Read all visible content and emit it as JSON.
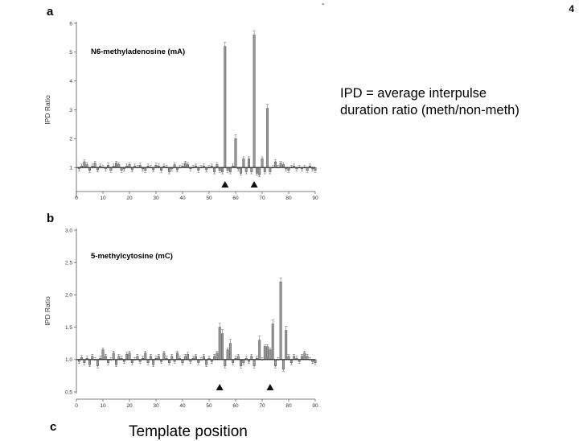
{
  "page": {
    "number": "4",
    "dash": "-"
  },
  "panels": {
    "a": "a",
    "b": "b",
    "c": "c"
  },
  "caption": {
    "line1": "IPD = average interpulse",
    "line2": "duration ratio (meth/non-meth)"
  },
  "cut_text": "Template position",
  "chart_data": [
    {
      "type": "bar",
      "title": "N6-methyladenosine (mA)",
      "ylabel": "IPD Ratio",
      "xlabel": "",
      "xlim": [
        0,
        90
      ],
      "ylim": [
        0,
        6
      ],
      "baseline": 1.0,
      "yticks": [
        1,
        2,
        3,
        4,
        5,
        6
      ],
      "xticks": [
        0,
        10,
        20,
        30,
        40,
        50,
        60,
        70,
        80,
        90
      ],
      "grid": false,
      "markers_x": [
        56,
        67
      ],
      "x": [
        1,
        2,
        3,
        4,
        5,
        6,
        7,
        8,
        9,
        10,
        11,
        12,
        13,
        14,
        15,
        16,
        17,
        18,
        19,
        20,
        21,
        22,
        23,
        24,
        25,
        26,
        27,
        28,
        29,
        30,
        31,
        32,
        33,
        34,
        35,
        36,
        37,
        38,
        39,
        40,
        41,
        42,
        43,
        44,
        45,
        46,
        47,
        48,
        49,
        50,
        51,
        52,
        53,
        54,
        55,
        56,
        57,
        58,
        59,
        60,
        61,
        62,
        63,
        64,
        65,
        66,
        67,
        68,
        69,
        70,
        71,
        72,
        73,
        74,
        75,
        76,
        77,
        78,
        79,
        80,
        81,
        82,
        83,
        84,
        85,
        86,
        87,
        88,
        89,
        90
      ],
      "values": [
        0.95,
        1.05,
        1.2,
        1.1,
        0.9,
        1.05,
        1.15,
        0.92,
        1.05,
        1.0,
        0.95,
        1.08,
        0.9,
        1.05,
        1.15,
        1.1,
        0.9,
        0.95,
        1.05,
        1.1,
        0.92,
        1.05,
        1.0,
        1.08,
        0.95,
        0.9,
        1.05,
        1.0,
        0.92,
        1.08,
        1.05,
        0.9,
        1.05,
        1.0,
        0.85,
        0.95,
        1.1,
        0.92,
        1.0,
        1.05,
        1.15,
        1.1,
        0.95,
        1.0,
        1.05,
        0.9,
        1.0,
        1.05,
        0.92,
        1.0,
        1.05,
        0.85,
        1.1,
        0.9,
        0.85,
        5.2,
        0.9,
        0.85,
        1.05,
        2.0,
        0.95,
        0.8,
        1.3,
        0.85,
        1.3,
        0.85,
        5.6,
        0.8,
        0.75,
        1.3,
        0.85,
        3.05,
        0.85,
        1.0,
        1.2,
        1.0,
        1.15,
        1.1,
        0.95,
        0.9,
        1.0,
        1.05,
        0.95,
        1.0,
        0.95,
        1.0,
        0.9,
        1.05,
        0.95,
        0.9
      ]
    },
    {
      "type": "bar",
      "title": "5-methylcytosine (mC)",
      "ylabel": "IPD Ratio",
      "xlabel": "",
      "xlim": [
        0,
        90
      ],
      "ylim": [
        0.5,
        3.0
      ],
      "baseline": 1.0,
      "yticks": [
        0.5,
        1.0,
        1.5,
        2.0,
        2.5,
        3.0
      ],
      "ytick_labels": [
        "0.5",
        "1.0",
        "1.5",
        "2.0",
        "2.5",
        "3.0"
      ],
      "xticks": [
        0,
        10,
        20,
        30,
        40,
        50,
        60,
        70,
        80,
        90
      ],
      "grid": false,
      "markers_x": [
        54,
        73
      ],
      "x": [
        1,
        2,
        3,
        4,
        5,
        6,
        7,
        8,
        9,
        10,
        11,
        12,
        13,
        14,
        15,
        16,
        17,
        18,
        19,
        20,
        21,
        22,
        23,
        24,
        25,
        26,
        27,
        28,
        29,
        30,
        31,
        32,
        33,
        34,
        35,
        36,
        37,
        38,
        39,
        40,
        41,
        42,
        43,
        44,
        45,
        46,
        47,
        48,
        49,
        50,
        51,
        52,
        53,
        54,
        55,
        56,
        57,
        58,
        59,
        60,
        61,
        62,
        63,
        64,
        65,
        66,
        67,
        68,
        69,
        70,
        71,
        72,
        73,
        74,
        75,
        76,
        77,
        78,
        79,
        80,
        81,
        82,
        83,
        84,
        85,
        86,
        87,
        88,
        89,
        90
      ],
      "values": [
        0.97,
        1.03,
        0.95,
        1.02,
        0.92,
        1.05,
        1.0,
        0.9,
        1.02,
        1.15,
        1.05,
        0.95,
        1.0,
        1.1,
        0.92,
        1.05,
        1.02,
        0.97,
        1.08,
        1.1,
        0.95,
        1.0,
        1.05,
        0.97,
        1.02,
        1.1,
        0.95,
        1.05,
        0.92,
        1.02,
        1.05,
        0.97,
        1.1,
        1.02,
        0.95,
        1.05,
        0.97,
        1.1,
        1.02,
        0.95,
        1.05,
        1.08,
        0.97,
        1.02,
        1.05,
        0.95,
        1.0,
        1.05,
        0.92,
        1.02,
        0.97,
        1.05,
        1.1,
        1.5,
        1.4,
        0.9,
        1.15,
        1.25,
        0.95,
        1.02,
        1.05,
        0.9,
        0.95,
        1.02,
        0.97,
        1.05,
        0.9,
        1.02,
        1.3,
        1.0,
        1.2,
        1.2,
        1.15,
        1.55,
        0.9,
        1.0,
        2.2,
        0.85,
        1.45,
        1.05,
        0.95,
        1.05,
        1.02,
        0.97,
        1.05,
        1.1,
        1.05,
        1.0,
        0.97,
        0.95
      ]
    }
  ]
}
